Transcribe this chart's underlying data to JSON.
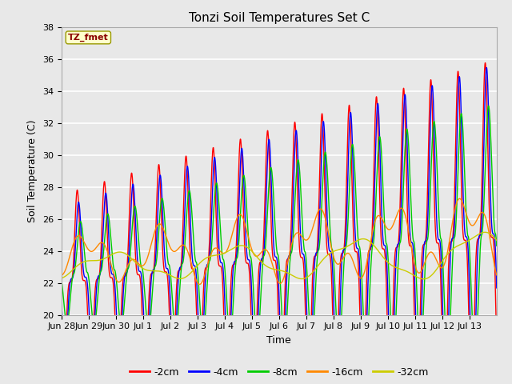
{
  "title": "Tonzi Soil Temperatures Set C",
  "xlabel": "Time",
  "ylabel": "Soil Temperature (C)",
  "ylim": [
    20,
    38
  ],
  "annotation": "TZ_fmet",
  "annotation_color": "#8B0000",
  "annotation_bg": "#FFFFCC",
  "series_labels": [
    "-2cm",
    "-4cm",
    "-8cm",
    "-16cm",
    "-32cm"
  ],
  "series_colors": [
    "#FF0000",
    "#0000FF",
    "#00CC00",
    "#FF8800",
    "#CCCC00"
  ],
  "background_color": "#E8E8E8",
  "plot_bg": "#E8E8E8",
  "grid_color": "#FFFFFF",
  "xtick_labels": [
    "Jun 28",
    "Jun 29",
    "Jun 30",
    "Jul 1",
    "Jul 2",
    "Jul 3",
    "Jul 4",
    "Jul 5",
    "Jul 6",
    "Jul 7",
    "Jul 8",
    "Jul 9",
    "Jul 10",
    "Jul 11",
    "Jul 12",
    "Jul 13"
  ],
  "n_days": 16,
  "samples_per_day": 144
}
